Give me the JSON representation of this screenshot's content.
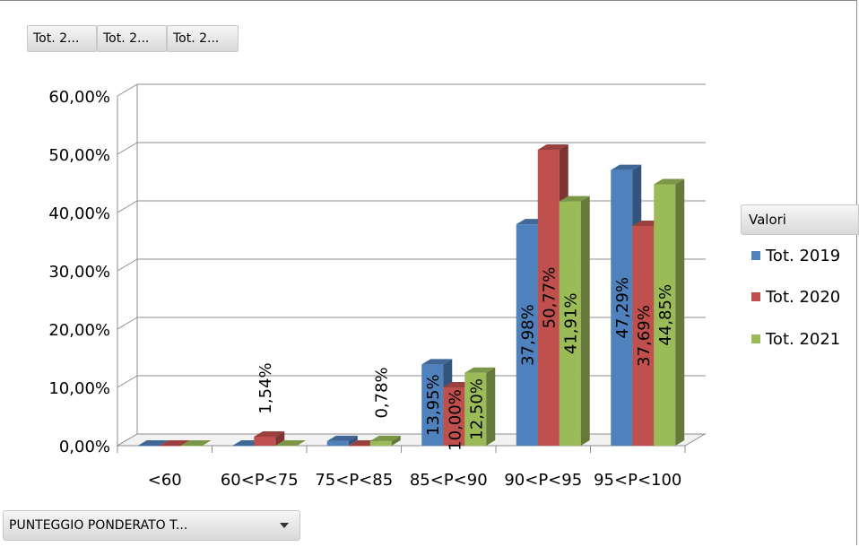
{
  "field_buttons": [
    "Tot. 2...",
    "Tot. 2...",
    "Tot. 2..."
  ],
  "legend": {
    "title": "Valori",
    "items": [
      {
        "label": "Tot. 2019",
        "color": "#4f81bd"
      },
      {
        "label": "Tot. 2020",
        "color": "#c0504d"
      },
      {
        "label": "Tot. 2021",
        "color": "#9bbb59"
      }
    ]
  },
  "filter": {
    "label": "PUNTEGGIO PONDERATO T...",
    "icon": "chevron-down-icon"
  },
  "chart_data": {
    "type": "bar",
    "style": "3d-clustered-column",
    "categories": [
      "<60",
      "60<P<75",
      "75<P<85",
      "85<P<90",
      "90<P<95",
      "95<P<100"
    ],
    "series": [
      {
        "name": "Tot. 2019",
        "color": "#4f81bd",
        "values": [
          0,
          0,
          0.78,
          13.95,
          37.98,
          47.29
        ],
        "labels": [
          "",
          "",
          "",
          "13,95%",
          "37,98%",
          "47,29%"
        ]
      },
      {
        "name": "Tot. 2020",
        "color": "#c0504d",
        "values": [
          0,
          1.54,
          0,
          10.0,
          50.77,
          37.69
        ],
        "labels": [
          "",
          "1,54%",
          "",
          "10,00%",
          "50,77%",
          "37,69%"
        ]
      },
      {
        "name": "Tot. 2021",
        "color": "#9bbb59",
        "values": [
          0,
          0,
          0.78,
          12.5,
          41.91,
          44.85
        ],
        "labels": [
          "",
          "",
          "0,78%",
          "12,50%",
          "41,91%",
          "44,85%"
        ]
      }
    ],
    "ylim": [
      0,
      60
    ],
    "yticks": [
      0,
      10,
      20,
      30,
      40,
      50,
      60
    ],
    "ytick_labels": [
      "0,00%",
      "10,00%",
      "20,00%",
      "30,00%",
      "40,00%",
      "50,00%",
      "60,00%"
    ],
    "grid": true,
    "legend_position": "right"
  }
}
